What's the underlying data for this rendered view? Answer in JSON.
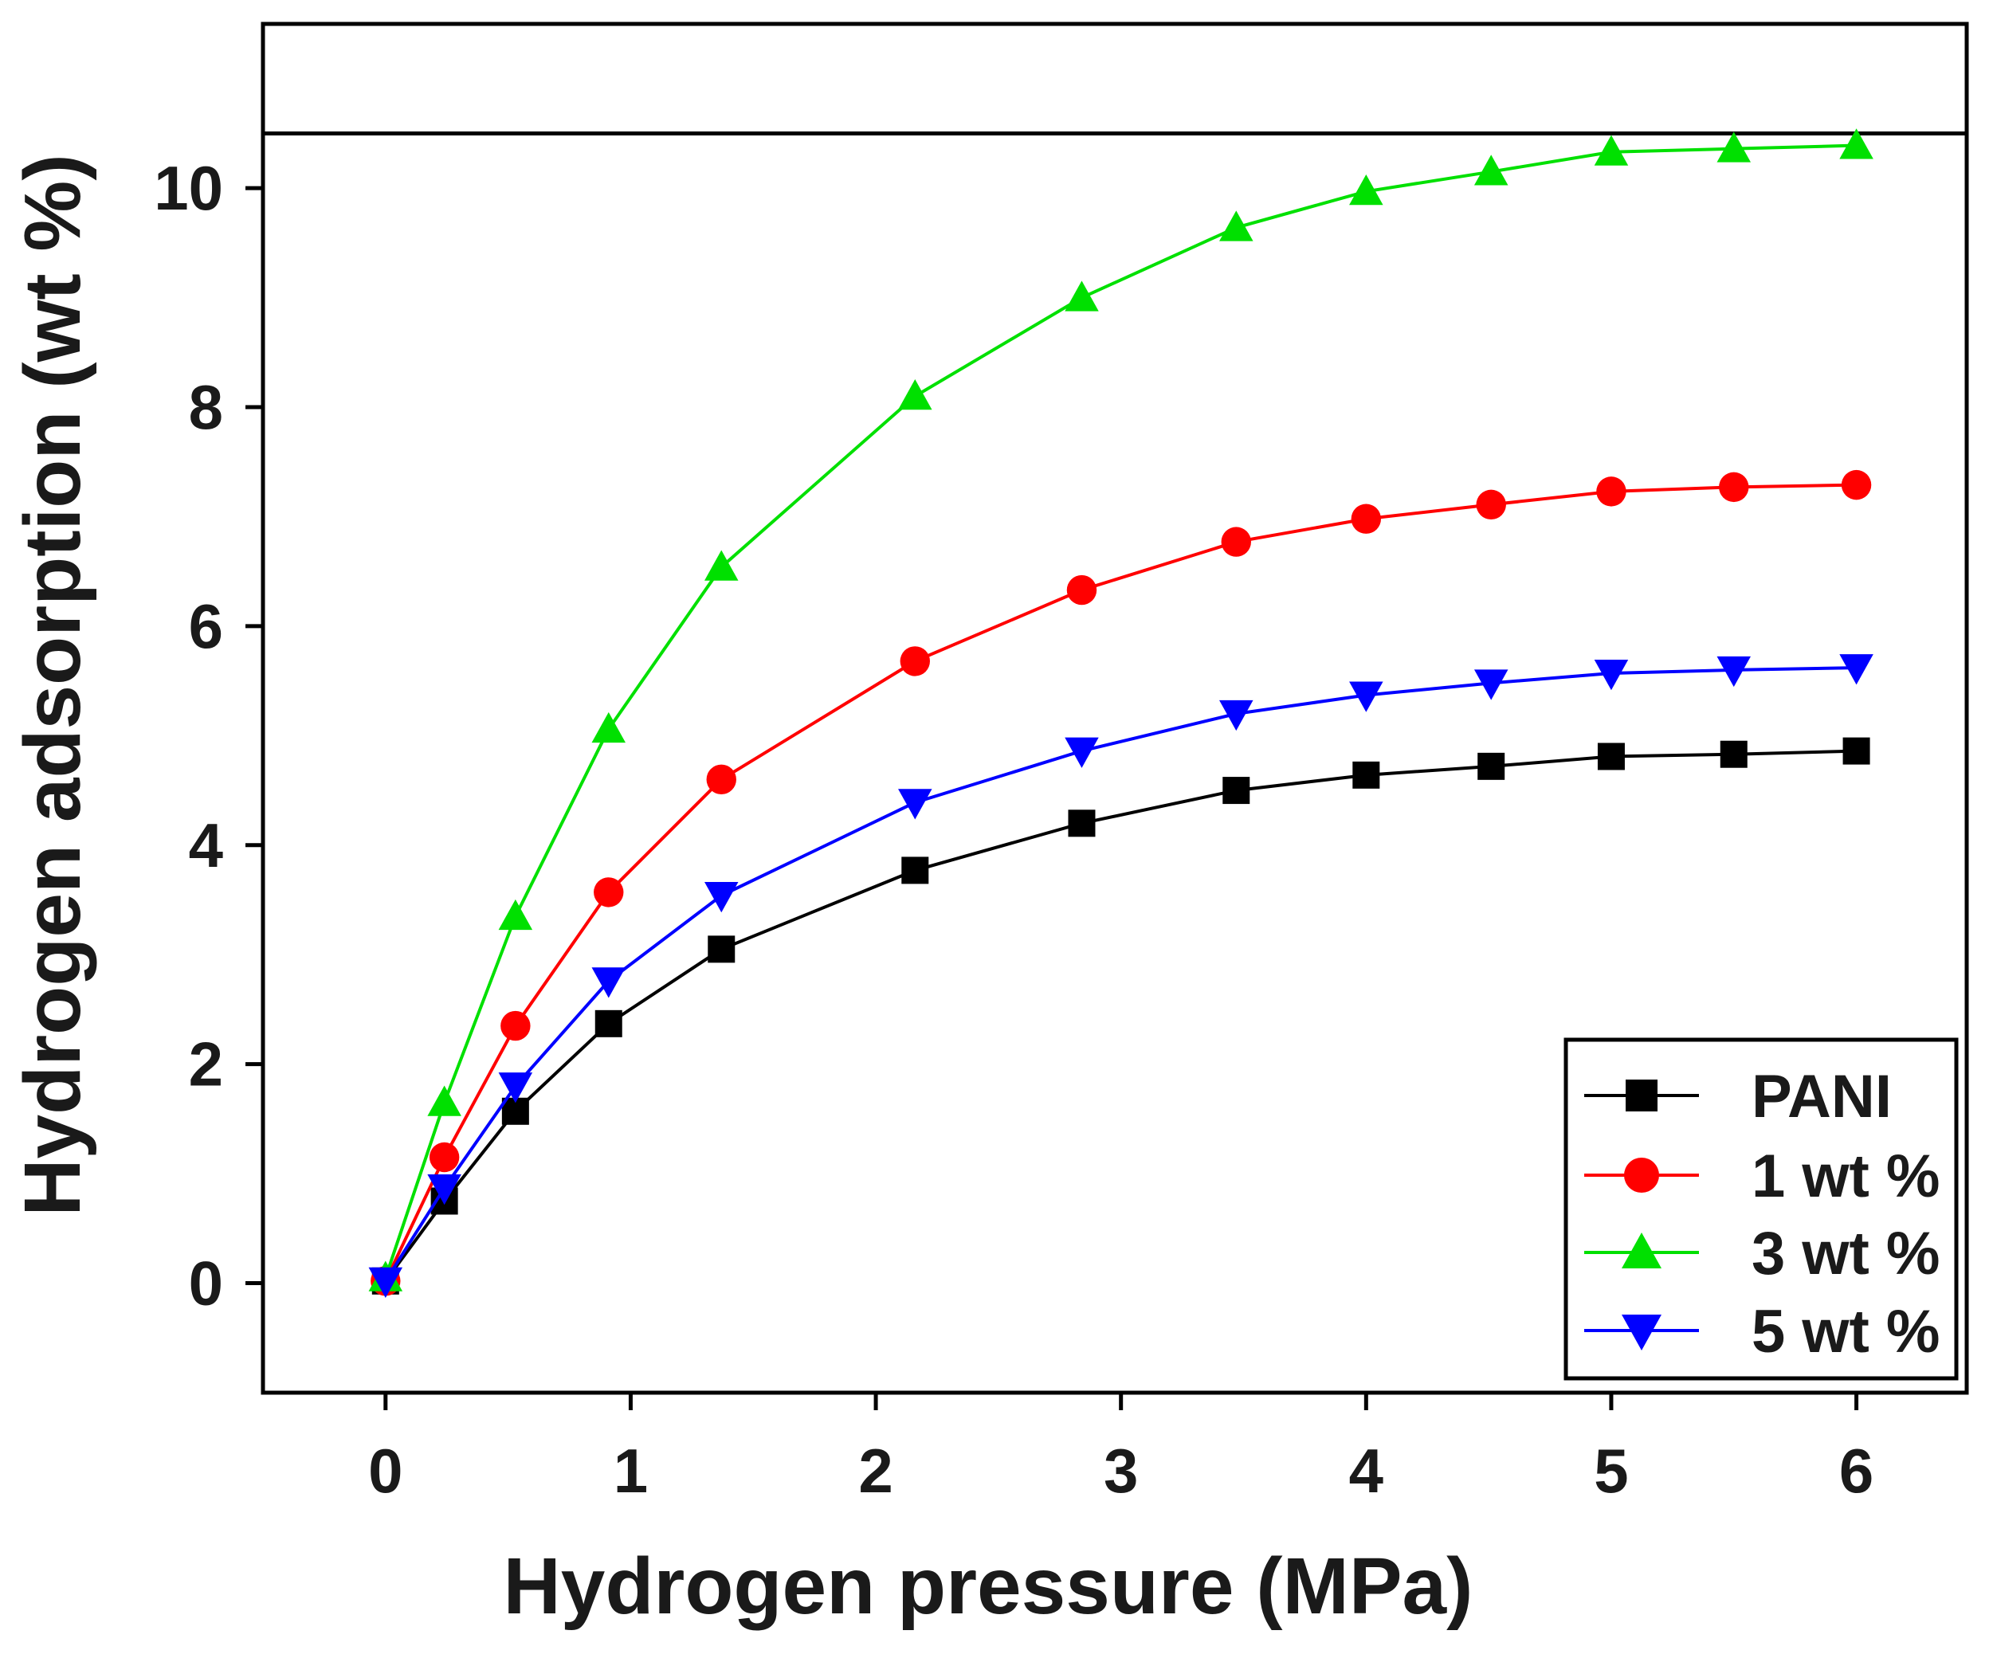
{
  "chart_data": {
    "type": "line",
    "title": "",
    "xlabel": "Hydrogen pressure (MPa)",
    "ylabel": "Hydrogen adsorption (wt %)",
    "xlim": [
      -0.5,
      6.45
    ],
    "ylim": [
      -1,
      11.5
    ],
    "x_ticks": [
      0,
      1,
      2,
      3,
      4,
      5,
      6
    ],
    "x_tick_labels": [
      "0",
      "1",
      "2",
      "3",
      "4",
      "5",
      "6"
    ],
    "y_ticks": [
      0,
      2,
      4,
      6,
      8,
      10
    ],
    "y_tick_labels": [
      "0",
      "2",
      "4",
      "6",
      "8",
      "10"
    ],
    "reference_line_y": 10.5,
    "grid": false,
    "legend_position": "bottom-right",
    "x": [
      0,
      0.24,
      0.53,
      0.91,
      1.37,
      2.16,
      2.84,
      3.47,
      4.0,
      4.51,
      5.0,
      5.5,
      6.0
    ],
    "series": [
      {
        "name": "PANI",
        "color": "#000000",
        "marker": "square",
        "values": [
          0.02,
          0.75,
          1.57,
          2.37,
          3.05,
          3.77,
          4.2,
          4.5,
          4.64,
          4.72,
          4.81,
          4.83,
          4.86
        ]
      },
      {
        "name": "1 wt %",
        "color": "#ff0000",
        "marker": "circle",
        "values": [
          0.02,
          1.15,
          2.35,
          3.57,
          4.6,
          5.68,
          6.33,
          6.77,
          6.98,
          7.11,
          7.23,
          7.27,
          7.29
        ]
      },
      {
        "name": "3 wt %",
        "color": "#00e000",
        "marker": "triangle-up",
        "values": [
          0.05,
          1.65,
          3.35,
          5.06,
          6.54,
          8.1,
          9.0,
          9.64,
          9.97,
          10.15,
          10.33,
          10.36,
          10.39
        ]
      },
      {
        "name": "5 wt %",
        "color": "#0000ff",
        "marker": "triangle-down",
        "values": [
          0.02,
          0.87,
          1.8,
          2.76,
          3.54,
          4.39,
          4.86,
          5.2,
          5.37,
          5.48,
          5.57,
          5.6,
          5.62
        ]
      }
    ]
  }
}
